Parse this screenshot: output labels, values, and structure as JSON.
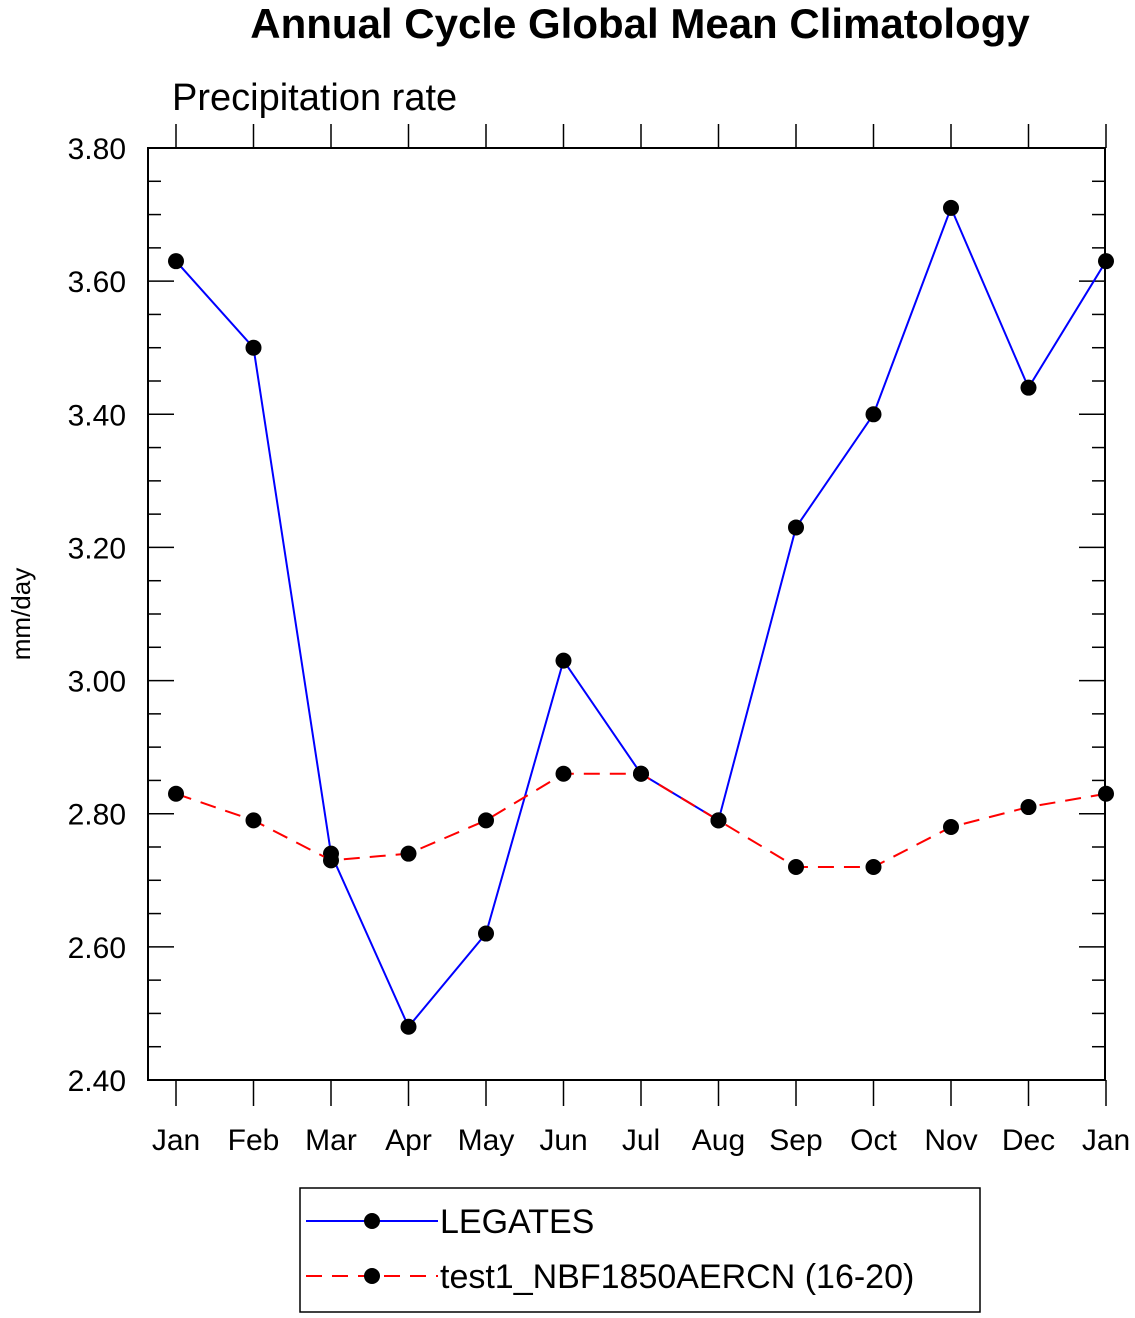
{
  "chart_data": {
    "type": "line",
    "title": "Annual Cycle Global Mean Climatology",
    "subtitle": "Precipitation rate",
    "ylabel": "mm/day",
    "xlabel": "",
    "categories": [
      "Jan",
      "Feb",
      "Mar",
      "Apr",
      "May",
      "Jun",
      "Jul",
      "Aug",
      "Sep",
      "Oct",
      "Nov",
      "Dec",
      "Jan"
    ],
    "ylim": [
      2.4,
      3.8
    ],
    "yticks": [
      "2.40",
      "2.60",
      "2.80",
      "3.00",
      "3.20",
      "3.40",
      "3.60",
      "3.80"
    ],
    "grid": false,
    "legend_position": "bottom",
    "series": [
      {
        "name": "LEGATES",
        "color": "#0000ff",
        "line_style": "solid",
        "marker": "filled-circle",
        "values": [
          3.63,
          3.5,
          2.74,
          2.48,
          2.62,
          3.03,
          2.86,
          2.79,
          3.23,
          3.4,
          3.71,
          3.44,
          3.63
        ]
      },
      {
        "name": "test1_NBF1850AERCN (16-20)",
        "color": "#ff0000",
        "line_style": "dashed",
        "marker": "filled-circle",
        "values": [
          2.83,
          2.79,
          2.73,
          2.74,
          2.79,
          2.86,
          2.86,
          2.79,
          2.72,
          2.72,
          2.78,
          2.81,
          2.83
        ]
      }
    ]
  }
}
